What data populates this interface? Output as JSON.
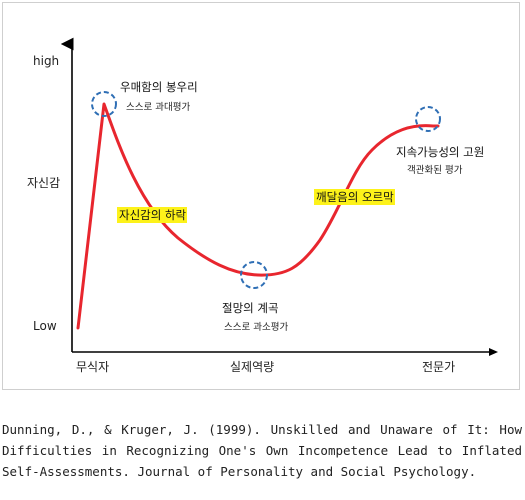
{
  "axis": {
    "y_high": "high",
    "y_mid": "자신감",
    "y_low": "Low",
    "x_start": "무식자",
    "x_mid": "실제역량",
    "x_end": "전문가"
  },
  "peak": {
    "title": "우매함의 봉우리",
    "subtitle": "스스로 과대평가"
  },
  "decline": {
    "label": "자신감의 하락"
  },
  "valley": {
    "title": "절망의 계곡",
    "subtitle": "스스로 과소평가"
  },
  "slope": {
    "label": "깨달음의 오르막"
  },
  "plateau": {
    "title": "지속가능성의 고원",
    "subtitle": "객관화된 평가"
  },
  "colors": {
    "curve": "#e8262e",
    "marker": "#2f6fb5",
    "highlight": "#fdf21a",
    "axis": "#000000"
  },
  "citation": {
    "text": "Dunning, D., & Kruger, J. (1999). Unskilled and Unaware of It: How Difficulties in Recognizing One's Own Incompetence Lead to Inflated Self-Assessments. Journal of Personality and Social Psychology."
  }
}
